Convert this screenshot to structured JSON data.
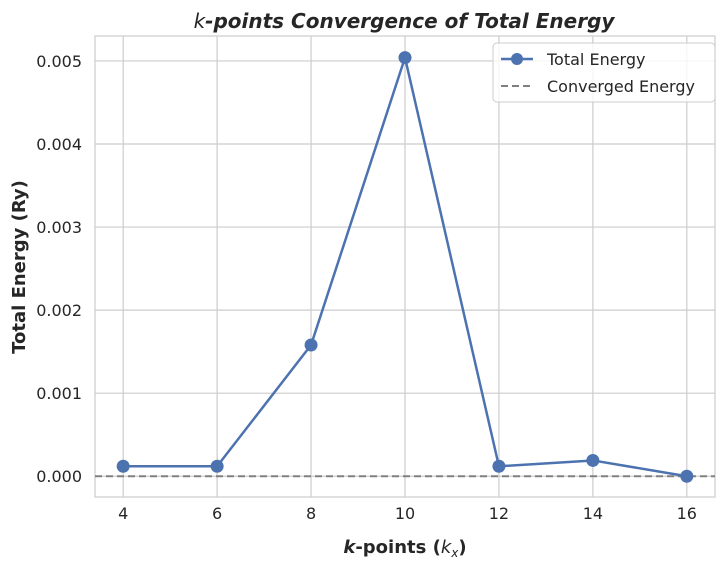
{
  "chart_data": {
    "type": "line",
    "title": "k-points Convergence of Total Energy",
    "xlabel": "k-points (k_x)",
    "ylabel": "Total Energy (Ry)",
    "x": [
      4,
      6,
      8,
      10,
      12,
      14,
      16
    ],
    "xlim": [
      3.4,
      16.6
    ],
    "ylim": [
      -0.00025,
      0.0053
    ],
    "xticks": [
      4,
      6,
      8,
      10,
      12,
      14,
      16
    ],
    "yticks": [
      0.0,
      0.001,
      0.002,
      0.003,
      0.004,
      0.005
    ],
    "ytick_labels": [
      "0.000",
      "0.001",
      "0.002",
      "0.003",
      "0.004",
      "0.005"
    ],
    "grid": true,
    "legend_position": "top-right",
    "series": [
      {
        "name": "Total Energy",
        "values": [
          0.00012,
          0.00012,
          0.00158,
          0.00504,
          0.00012,
          0.00019,
          0.0
        ],
        "color": "#4c72b0",
        "style": "solid",
        "marker": "circle"
      }
    ],
    "reference_lines": [
      {
        "name": "Converged Energy",
        "y": 0.0,
        "color": "#808080",
        "style": "dashed"
      }
    ]
  }
}
